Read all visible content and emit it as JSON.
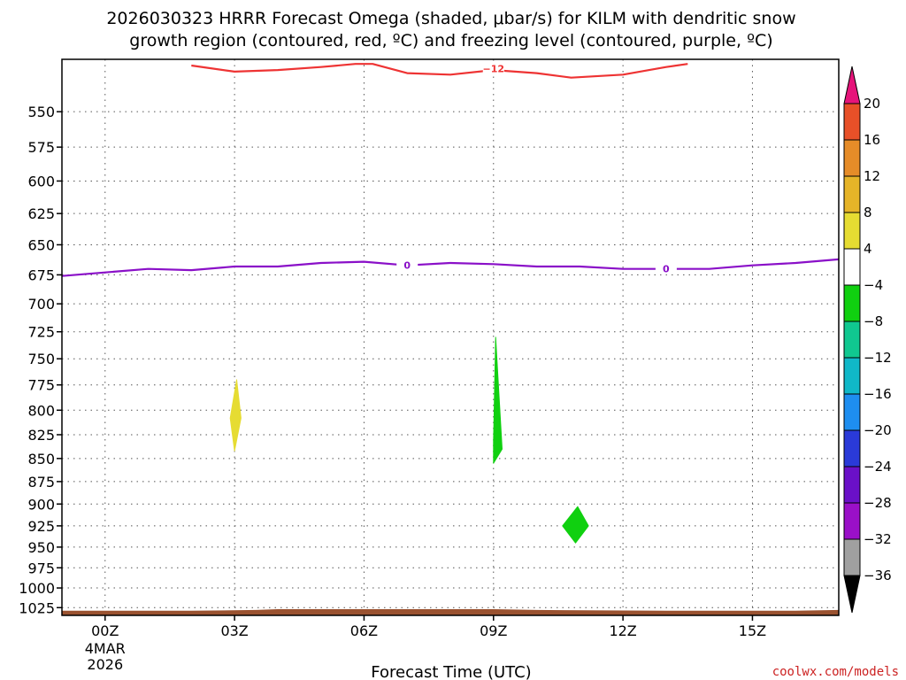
{
  "title_lines": [
    "2026030323 HRRR Forecast Omega (shaded, μbar/s) for KILM with dendritic snow",
    "growth region (contoured, red, ºC) and freezing level (contoured, purple, ºC)"
  ],
  "credit": "coolwx.com/models",
  "chart_data": {
    "type": "time-height cross-section",
    "xlabel": "Forecast Time (UTC)",
    "x_range_hours": [
      -1,
      17
    ],
    "x_ticks": [
      {
        "hour": 0,
        "label": "00Z",
        "sub": [
          "4MAR",
          "2026"
        ]
      },
      {
        "hour": 3,
        "label": "03Z",
        "sub": []
      },
      {
        "hour": 6,
        "label": "06Z",
        "sub": []
      },
      {
        "hour": 9,
        "label": "09Z",
        "sub": []
      },
      {
        "hour": 12,
        "label": "12Z",
        "sub": []
      },
      {
        "hour": 15,
        "label": "15Z",
        "sub": []
      }
    ],
    "y_axis": "pressure (hPa), log scale, inverted",
    "y_range_hpa": [
      515,
      1035
    ],
    "y_ticks": [
      550,
      575,
      600,
      625,
      650,
      675,
      700,
      725,
      750,
      775,
      800,
      825,
      850,
      875,
      900,
      925,
      950,
      975,
      1000,
      1025
    ],
    "grid": true,
    "colorbar": {
      "levels": [
        -36,
        -32,
        -28,
        -24,
        -20,
        -16,
        -12,
        -8,
        -4,
        4,
        8,
        12,
        16,
        20
      ],
      "colors": [
        "#a0a0a0",
        "#9a10c8",
        "#6a10c8",
        "#2a3ad8",
        "#1e8ef0",
        "#10b8c8",
        "#10c890",
        "#10d010",
        "#ffffff",
        "#e6dc32",
        "#e6b428",
        "#e68c28",
        "#e85028",
        "#e6147a"
      ],
      "under_color": "#000000",
      "over_color": "#e6147a"
    },
    "shaded_regions": [
      {
        "label": "omega 4 to 8",
        "color": "#e6dc32",
        "points": [
          [
            2.9,
            808
          ],
          [
            3.05,
            770
          ],
          [
            3.15,
            808
          ],
          [
            3.0,
            842
          ]
        ]
      },
      {
        "label": "omega -8 to -4",
        "color": "#10d010",
        "points": [
          [
            9.0,
            832
          ],
          [
            9.05,
            730
          ],
          [
            9.2,
            840
          ],
          [
            9.0,
            855
          ]
        ]
      },
      {
        "label": "omega -8 to -4",
        "color": "#10d010",
        "points": [
          [
            10.6,
            925
          ],
          [
            10.95,
            903
          ],
          [
            11.2,
            925
          ],
          [
            10.9,
            945
          ]
        ]
      }
    ],
    "contours": [
      {
        "name": "dendritic snow growth region",
        "level": -12,
        "label": "−12",
        "color": "#ee3333",
        "x": [
          2,
          3,
          4,
          5,
          5.8,
          6.2,
          7,
          8,
          9,
          10,
          10.8,
          12,
          13,
          13.5
        ],
        "y": [
          519,
          523,
          522,
          520,
          518,
          518,
          524,
          525,
          522,
          524,
          527,
          525,
          520,
          518
        ],
        "label_at": {
          "x": 9.0,
          "y": 521
        }
      },
      {
        "name": "freezing level",
        "level": 0,
        "label": "0",
        "color": "#8a10c8",
        "x": [
          -1,
          0,
          1,
          2,
          3,
          4,
          5,
          6,
          7,
          8,
          9,
          10,
          11,
          12,
          13,
          14,
          15,
          16,
          17
        ],
        "y": [
          676,
          673,
          670,
          671,
          668,
          668,
          665,
          664,
          667,
          665,
          666,
          668,
          668,
          670,
          670,
          670,
          667,
          665,
          662
        ],
        "label_at": [
          {
            "x": 7.0,
            "y": 667
          },
          {
            "x": 13.0,
            "y": 670
          }
        ]
      }
    ],
    "ground": {
      "color": "#9a5230",
      "top_hpa": [
        1029,
        1029,
        1028,
        1027,
        1027,
        1027,
        1028,
        1029,
        1029,
        1028
      ],
      "x": [
        -1,
        2,
        3.5,
        4,
        8,
        9,
        10,
        13,
        16,
        17
      ]
    }
  }
}
